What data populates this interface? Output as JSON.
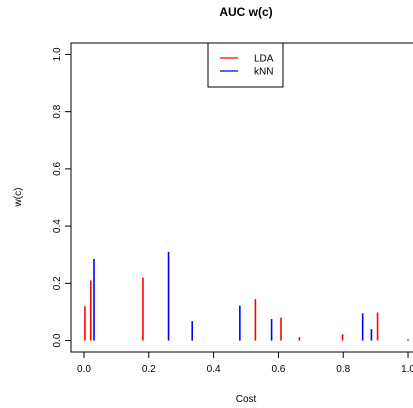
{
  "chart_data": {
    "type": "bar",
    "title": "AUC w(c)",
    "xlabel": "Cost",
    "ylabel": "w(c)",
    "xlim": [
      -0.04,
      1.04
    ],
    "ylim": [
      -0.04,
      1.04
    ],
    "xticks": [
      "0.0",
      "0.2",
      "0.4",
      "0.6",
      "0.8",
      "1.0"
    ],
    "xtick_values": [
      0.0,
      0.2,
      0.4,
      0.6,
      0.8,
      1.0
    ],
    "yticks": [
      "0.0",
      "0.2",
      "0.4",
      "0.6",
      "0.8",
      "1.0"
    ],
    "ytick_values": [
      0.0,
      0.2,
      0.4,
      0.6,
      0.8,
      1.0
    ],
    "legend_position": "top-center",
    "series": [
      {
        "name": "LDA",
        "color": "#ff0000",
        "points": [
          {
            "x": 0.003,
            "y": 0.12
          },
          {
            "x": 0.021,
            "y": 0.21
          },
          {
            "x": 0.182,
            "y": 0.22
          },
          {
            "x": 0.529,
            "y": 0.145
          },
          {
            "x": 0.608,
            "y": 0.08
          },
          {
            "x": 0.665,
            "y": 0.012
          },
          {
            "x": 0.798,
            "y": 0.022
          },
          {
            "x": 0.906,
            "y": 0.098
          },
          {
            "x": 1.0,
            "y": 0.005
          }
        ]
      },
      {
        "name": "kNN",
        "color": "#0000ff",
        "points": [
          {
            "x": 0.031,
            "y": 0.285
          },
          {
            "x": 0.261,
            "y": 0.31
          },
          {
            "x": 0.334,
            "y": 0.068
          },
          {
            "x": 0.481,
            "y": 0.122
          },
          {
            "x": 0.579,
            "y": 0.075
          },
          {
            "x": 0.86,
            "y": 0.095
          },
          {
            "x": 0.887,
            "y": 0.04
          }
        ]
      }
    ]
  }
}
